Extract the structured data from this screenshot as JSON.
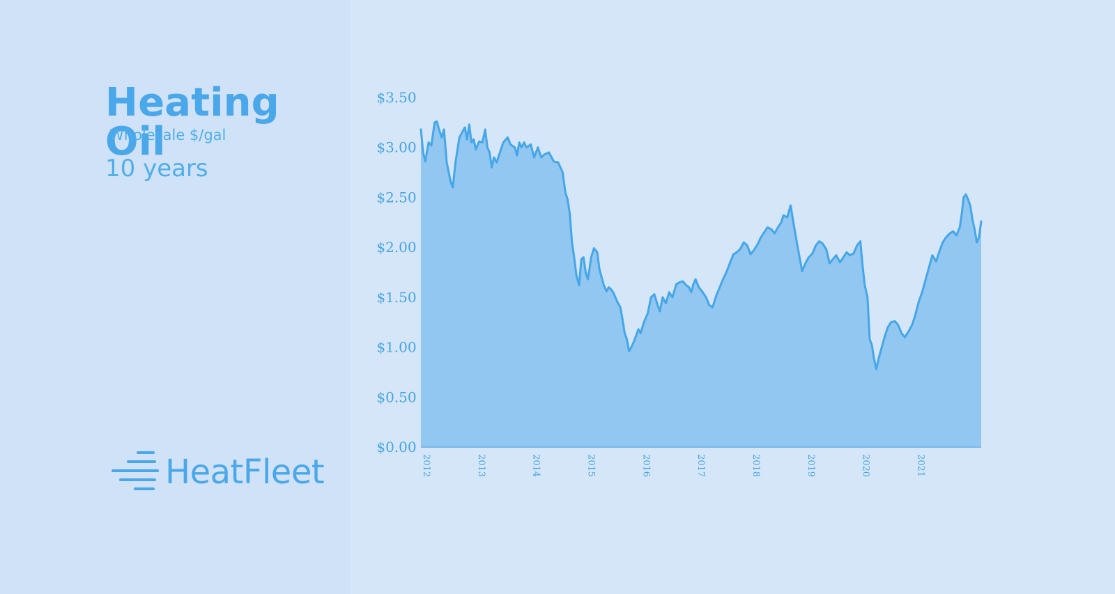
{
  "header": {
    "title": "Heating Oil",
    "subtitle": "Wholesale $/gal",
    "period": "10 years"
  },
  "brand": {
    "name": "HeatFleet",
    "icon": "speed-lines-icon"
  },
  "colors": {
    "background": "#d5e6f8",
    "left_panel": "#cfe2f7",
    "accent": "#4aa7e9",
    "area_fill": "#91c7f0",
    "line": "#45a6e8"
  },
  "chart_data": {
    "type": "area",
    "title": "Heating Oil",
    "xlabel": "",
    "ylabel": "",
    "xlim": [
      2012.0,
      2022.2
    ],
    "ylim": [
      0,
      3.5
    ],
    "grid": false,
    "legend": "none",
    "y_ticks": [
      {
        "value": 0.0,
        "label": "$0.00"
      },
      {
        "value": 0.5,
        "label": "$0.50"
      },
      {
        "value": 1.0,
        "label": "$1.00"
      },
      {
        "value": 1.5,
        "label": "$1.50"
      },
      {
        "value": 2.0,
        "label": "$2.00"
      },
      {
        "value": 2.5,
        "label": "$2.50"
      },
      {
        "value": 3.0,
        "label": "$3.00"
      },
      {
        "value": 3.5,
        "label": "$3.50"
      }
    ],
    "x_ticks": [
      {
        "value": 2012.0,
        "label": "2012"
      },
      {
        "value": 2013.0,
        "label": "2013"
      },
      {
        "value": 2014.0,
        "label": "2014"
      },
      {
        "value": 2015.0,
        "label": "2015"
      },
      {
        "value": 2016.0,
        "label": "2016"
      },
      {
        "value": 2017.0,
        "label": "2017"
      },
      {
        "value": 2018.0,
        "label": "2018"
      },
      {
        "value": 2019.0,
        "label": "2019"
      },
      {
        "value": 2020.0,
        "label": "2020"
      },
      {
        "value": 2021.0,
        "label": "2021"
      }
    ],
    "series": [
      {
        "points": [
          [
            2012.0,
            3.18
          ],
          [
            2012.04,
            2.95
          ],
          [
            2012.08,
            2.86
          ],
          [
            2012.14,
            3.05
          ],
          [
            2012.19,
            3.02
          ],
          [
            2012.25,
            3.25
          ],
          [
            2012.29,
            3.26
          ],
          [
            2012.33,
            3.18
          ],
          [
            2012.38,
            3.1
          ],
          [
            2012.42,
            3.18
          ],
          [
            2012.47,
            2.85
          ],
          [
            2012.54,
            2.66
          ],
          [
            2012.58,
            2.6
          ],
          [
            2012.63,
            2.85
          ],
          [
            2012.7,
            3.1
          ],
          [
            2012.75,
            3.15
          ],
          [
            2012.8,
            3.2
          ],
          [
            2012.84,
            3.08
          ],
          [
            2012.88,
            3.23
          ],
          [
            2012.92,
            3.05
          ],
          [
            2012.96,
            3.08
          ],
          [
            2013.0,
            2.98
          ],
          [
            2013.06,
            3.06
          ],
          [
            2013.12,
            3.05
          ],
          [
            2013.17,
            3.18
          ],
          [
            2013.21,
            3.0
          ],
          [
            2013.25,
            2.95
          ],
          [
            2013.29,
            2.8
          ],
          [
            2013.33,
            2.9
          ],
          [
            2013.38,
            2.85
          ],
          [
            2013.42,
            2.92
          ],
          [
            2013.5,
            3.05
          ],
          [
            2013.58,
            3.1
          ],
          [
            2013.63,
            3.03
          ],
          [
            2013.71,
            3.0
          ],
          [
            2013.75,
            2.92
          ],
          [
            2013.79,
            3.05
          ],
          [
            2013.83,
            3.0
          ],
          [
            2013.88,
            3.05
          ],
          [
            2013.92,
            3.0
          ],
          [
            2014.0,
            3.03
          ],
          [
            2014.06,
            2.9
          ],
          [
            2014.13,
            3.0
          ],
          [
            2014.19,
            2.9
          ],
          [
            2014.25,
            2.93
          ],
          [
            2014.33,
            2.95
          ],
          [
            2014.42,
            2.86
          ],
          [
            2014.5,
            2.85
          ],
          [
            2014.58,
            2.75
          ],
          [
            2014.63,
            2.55
          ],
          [
            2014.67,
            2.48
          ],
          [
            2014.71,
            2.34
          ],
          [
            2014.75,
            2.05
          ],
          [
            2014.79,
            1.9
          ],
          [
            2014.83,
            1.72
          ],
          [
            2014.88,
            1.62
          ],
          [
            2014.92,
            1.88
          ],
          [
            2014.96,
            1.9
          ],
          [
            2015.0,
            1.75
          ],
          [
            2015.04,
            1.68
          ],
          [
            2015.1,
            1.9
          ],
          [
            2015.15,
            1.99
          ],
          [
            2015.21,
            1.95
          ],
          [
            2015.25,
            1.78
          ],
          [
            2015.29,
            1.7
          ],
          [
            2015.33,
            1.62
          ],
          [
            2015.38,
            1.56
          ],
          [
            2015.42,
            1.6
          ],
          [
            2015.46,
            1.58
          ],
          [
            2015.5,
            1.55
          ],
          [
            2015.54,
            1.5
          ],
          [
            2015.58,
            1.45
          ],
          [
            2015.63,
            1.4
          ],
          [
            2015.67,
            1.28
          ],
          [
            2015.71,
            1.14
          ],
          [
            2015.75,
            1.08
          ],
          [
            2015.79,
            0.96
          ],
          [
            2015.83,
            1.0
          ],
          [
            2015.88,
            1.06
          ],
          [
            2015.92,
            1.12
          ],
          [
            2015.96,
            1.18
          ],
          [
            2016.0,
            1.14
          ],
          [
            2016.06,
            1.25
          ],
          [
            2016.13,
            1.34
          ],
          [
            2016.19,
            1.5
          ],
          [
            2016.25,
            1.53
          ],
          [
            2016.31,
            1.42
          ],
          [
            2016.35,
            1.36
          ],
          [
            2016.4,
            1.5
          ],
          [
            2016.46,
            1.44
          ],
          [
            2016.52,
            1.55
          ],
          [
            2016.58,
            1.5
          ],
          [
            2016.65,
            1.63
          ],
          [
            2016.71,
            1.65
          ],
          [
            2016.77,
            1.66
          ],
          [
            2016.83,
            1.62
          ],
          [
            2016.88,
            1.6
          ],
          [
            2016.92,
            1.55
          ],
          [
            2016.96,
            1.63
          ],
          [
            2017.0,
            1.68
          ],
          [
            2017.06,
            1.6
          ],
          [
            2017.13,
            1.55
          ],
          [
            2017.19,
            1.5
          ],
          [
            2017.25,
            1.42
          ],
          [
            2017.31,
            1.4
          ],
          [
            2017.38,
            1.52
          ],
          [
            2017.44,
            1.6
          ],
          [
            2017.5,
            1.68
          ],
          [
            2017.56,
            1.75
          ],
          [
            2017.63,
            1.85
          ],
          [
            2017.69,
            1.93
          ],
          [
            2017.75,
            1.95
          ],
          [
            2017.81,
            1.98
          ],
          [
            2017.88,
            2.05
          ],
          [
            2017.94,
            2.02
          ],
          [
            2018.0,
            1.93
          ],
          [
            2018.06,
            1.97
          ],
          [
            2018.13,
            2.03
          ],
          [
            2018.19,
            2.1
          ],
          [
            2018.25,
            2.15
          ],
          [
            2018.31,
            2.2
          ],
          [
            2018.38,
            2.18
          ],
          [
            2018.44,
            2.14
          ],
          [
            2018.5,
            2.2
          ],
          [
            2018.56,
            2.25
          ],
          [
            2018.6,
            2.32
          ],
          [
            2018.67,
            2.3
          ],
          [
            2018.73,
            2.42
          ],
          [
            2018.79,
            2.22
          ],
          [
            2018.85,
            2.03
          ],
          [
            2018.9,
            1.88
          ],
          [
            2018.94,
            1.76
          ],
          [
            2019.0,
            1.84
          ],
          [
            2019.06,
            1.9
          ],
          [
            2019.13,
            1.94
          ],
          [
            2019.19,
            2.02
          ],
          [
            2019.25,
            2.06
          ],
          [
            2019.31,
            2.04
          ],
          [
            2019.38,
            1.98
          ],
          [
            2019.44,
            1.84
          ],
          [
            2019.5,
            1.88
          ],
          [
            2019.56,
            1.92
          ],
          [
            2019.63,
            1.85
          ],
          [
            2019.69,
            1.9
          ],
          [
            2019.75,
            1.95
          ],
          [
            2019.81,
            1.92
          ],
          [
            2019.88,
            1.94
          ],
          [
            2019.94,
            2.02
          ],
          [
            2020.0,
            2.06
          ],
          [
            2020.04,
            1.82
          ],
          [
            2020.08,
            1.62
          ],
          [
            2020.13,
            1.5
          ],
          [
            2020.17,
            1.08
          ],
          [
            2020.21,
            1.02
          ],
          [
            2020.25,
            0.88
          ],
          [
            2020.29,
            0.78
          ],
          [
            2020.33,
            0.88
          ],
          [
            2020.38,
            0.98
          ],
          [
            2020.44,
            1.1
          ],
          [
            2020.5,
            1.2
          ],
          [
            2020.56,
            1.25
          ],
          [
            2020.63,
            1.26
          ],
          [
            2020.69,
            1.22
          ],
          [
            2020.75,
            1.14
          ],
          [
            2020.81,
            1.1
          ],
          [
            2020.88,
            1.16
          ],
          [
            2020.94,
            1.22
          ],
          [
            2021.0,
            1.32
          ],
          [
            2021.06,
            1.45
          ],
          [
            2021.13,
            1.56
          ],
          [
            2021.19,
            1.68
          ],
          [
            2021.25,
            1.8
          ],
          [
            2021.31,
            1.92
          ],
          [
            2021.38,
            1.86
          ],
          [
            2021.44,
            1.96
          ],
          [
            2021.5,
            2.05
          ],
          [
            2021.56,
            2.1
          ],
          [
            2021.63,
            2.14
          ],
          [
            2021.69,
            2.16
          ],
          [
            2021.75,
            2.12
          ],
          [
            2021.81,
            2.2
          ],
          [
            2021.85,
            2.35
          ],
          [
            2021.88,
            2.5
          ],
          [
            2021.92,
            2.53
          ],
          [
            2021.96,
            2.48
          ],
          [
            2022.0,
            2.42
          ],
          [
            2022.04,
            2.28
          ],
          [
            2022.08,
            2.18
          ],
          [
            2022.12,
            2.05
          ],
          [
            2022.16,
            2.1
          ],
          [
            2022.2,
            2.26
          ]
        ]
      }
    ]
  }
}
